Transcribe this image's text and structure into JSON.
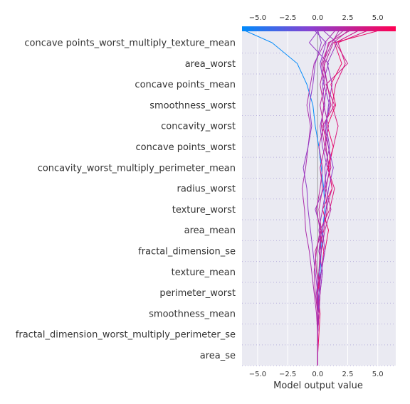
{
  "chart_data": {
    "type": "line",
    "subtype": "shap-decision-plot",
    "title": "",
    "xlabel": "Model output value",
    "ylabel": "",
    "xlim": [
      -6.3,
      6.5
    ],
    "xticks": [
      -5.0,
      -2.5,
      0.0,
      2.5,
      5.0
    ],
    "xtick_labels": [
      "−5.0",
      "−2.5",
      "0.0",
      "2.5",
      "5.0"
    ],
    "base_value": 0.0,
    "grid": true,
    "colorbar": {
      "position": "top",
      "low_color": "#008bfb",
      "high_color": "#ff0052",
      "range": [
        -6.3,
        6.5
      ]
    },
    "features": [
      "concave points_worst_multiply_texture_mean",
      "area_worst",
      "concave points_mean",
      "smoothness_worst",
      "concavity_worst",
      "concave points_worst",
      "concavity_worst_multiply_perimeter_mean",
      "radius_worst",
      "texture_worst",
      "area_mean",
      "fractal_dimension_se",
      "texture_mean",
      "perimeter_worst",
      "smoothness_mean",
      "fractal_dimension_worst_multiply_perimeter_se",
      "area_se"
    ],
    "series": [
      {
        "values": [
          0,
          0,
          0,
          0,
          0.1,
          0.2,
          0.3,
          0.4,
          0.6,
          0.5,
          0.3,
          0.1,
          -0.2,
          -0.4,
          -0.9,
          -1.7,
          -3.8,
          -6.2
        ]
      },
      {
        "values": [
          0,
          0,
          0,
          0.1,
          0.2,
          -0.1,
          -0.2,
          0.4,
          0.7,
          1.2,
          0.9,
          0.7,
          0.6,
          1.1,
          0.8,
          0.5,
          0.9,
          2.8
        ]
      },
      {
        "values": [
          0,
          0,
          0,
          0,
          0.2,
          0.4,
          0.1,
          0.5,
          0.8,
          0.6,
          1.1,
          0.9,
          0.4,
          1.4,
          0.7,
          2.5,
          1.5,
          3.5
        ]
      },
      {
        "values": [
          0,
          0,
          0,
          0.1,
          -0.1,
          0.3,
          0.5,
          0.2,
          1.0,
          1.4,
          0.8,
          1.3,
          1.7,
          1.2,
          1.5,
          2.3,
          1.7,
          4.3
        ]
      },
      {
        "values": [
          0,
          0,
          0.1,
          0.2,
          0,
          0.3,
          0.6,
          0.9,
          0.4,
          1.2,
          0.9,
          1.3,
          0.8,
          1.5,
          1.1,
          2.0,
          1.4,
          5.3
        ]
      },
      {
        "values": [
          0,
          0,
          0,
          -0.1,
          -0.3,
          -0.5,
          -0.7,
          -1.0,
          -1.1,
          -1.3,
          -1.0,
          -0.8,
          -0.6,
          -0.9,
          -0.6,
          -0.3,
          0.6,
          1.5
        ]
      },
      {
        "values": [
          0,
          0,
          0,
          0.1,
          0.2,
          0.4,
          0.1,
          0.3,
          -0.2,
          0.5,
          0.8,
          0.4,
          0.2,
          0.6,
          0.4,
          0.9,
          -0.7,
          0.1
        ]
      },
      {
        "values": [
          0,
          0,
          0,
          0,
          -0.1,
          0.1,
          0.3,
          0.1,
          0.4,
          0.7,
          0.6,
          1.0,
          0.7,
          0.9,
          1.2,
          0.8,
          1.6,
          0.4
        ]
      },
      {
        "values": [
          0,
          0,
          0,
          0.1,
          0,
          -0.2,
          -0.4,
          -0.6,
          -0.8,
          -0.9,
          -1.2,
          -0.8,
          -0.5,
          -0.7,
          -0.4,
          -0.2,
          0.3,
          0.0
        ]
      },
      {
        "values": [
          0,
          0,
          0,
          0,
          0.1,
          0.3,
          0.6,
          0.4,
          0.7,
          0.9,
          1.3,
          0.9,
          0.6,
          1.0,
          0.5,
          0.2,
          0.7,
          -0.3
        ]
      },
      {
        "values": [
          0,
          0,
          0,
          0,
          0,
          0.1,
          0.2,
          0.3,
          0.1,
          0.4,
          0.2,
          0.6,
          0.3,
          0.5,
          0.2,
          0.6,
          1.3,
          2.6
        ]
      },
      {
        "values": [
          0,
          0,
          0,
          0,
          -0.2,
          -0.3,
          -0.1,
          0.2,
          -0.1,
          0.2,
          0.4,
          0.1,
          0.5,
          0.2,
          0.6,
          0.3,
          1.0,
          2.2
        ]
      },
      {
        "values": [
          0,
          0,
          0,
          0.1,
          0.2,
          0.1,
          0.3,
          0.6,
          1.1,
          0.7,
          1.0,
          0.6,
          0.9,
          0.5,
          0.8,
          0.4,
          1.2,
          1.8
        ]
      }
    ]
  }
}
